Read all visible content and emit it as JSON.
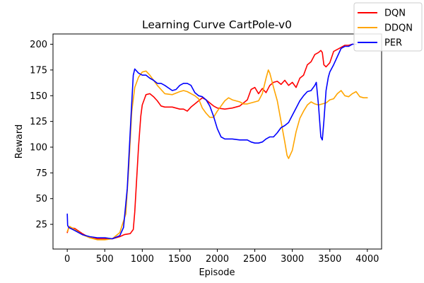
{
  "chart_data": {
    "type": "line",
    "title": "Learning Curve CartPole-v0",
    "xlabel": "Episode",
    "ylabel": "Reward",
    "xlim": [
      -190,
      4190
    ],
    "ylim": [
      1,
      210
    ],
    "xticks": [
      0,
      500,
      1000,
      1500,
      2000,
      2500,
      3000,
      3500,
      4000
    ],
    "yticks": [
      25,
      50,
      75,
      100,
      125,
      150,
      175,
      200
    ],
    "grid": false,
    "legend_position": "top-right",
    "series": [
      {
        "name": "DQN",
        "color": "#ff0000",
        "points": [
          [
            0,
            17
          ],
          [
            20,
            22
          ],
          [
            100,
            21
          ],
          [
            200,
            16
          ],
          [
            300,
            12
          ],
          [
            400,
            11
          ],
          [
            500,
            11
          ],
          [
            600,
            11
          ],
          [
            700,
            13
          ],
          [
            760,
            15
          ],
          [
            840,
            16
          ],
          [
            880,
            20
          ],
          [
            900,
            37
          ],
          [
            950,
            100
          ],
          [
            980,
            130
          ],
          [
            1000,
            141
          ],
          [
            1050,
            151
          ],
          [
            1100,
            152
          ],
          [
            1150,
            149
          ],
          [
            1200,
            145
          ],
          [
            1250,
            140
          ],
          [
            1300,
            139
          ],
          [
            1400,
            139
          ],
          [
            1500,
            137
          ],
          [
            1550,
            137
          ],
          [
            1600,
            135
          ],
          [
            1650,
            139
          ],
          [
            1700,
            142
          ],
          [
            1800,
            148
          ],
          [
            1850,
            146
          ],
          [
            1900,
            143
          ],
          [
            1950,
            140
          ],
          [
            2000,
            138
          ],
          [
            2100,
            137
          ],
          [
            2200,
            138
          ],
          [
            2300,
            140
          ],
          [
            2400,
            146
          ],
          [
            2450,
            156
          ],
          [
            2500,
            158
          ],
          [
            2550,
            152
          ],
          [
            2600,
            157
          ],
          [
            2650,
            153
          ],
          [
            2700,
            160
          ],
          [
            2750,
            163
          ],
          [
            2800,
            164
          ],
          [
            2850,
            161
          ],
          [
            2900,
            165
          ],
          [
            2950,
            160
          ],
          [
            3000,
            163
          ],
          [
            3050,
            158
          ],
          [
            3100,
            167
          ],
          [
            3150,
            170
          ],
          [
            3200,
            180
          ],
          [
            3250,
            183
          ],
          [
            3300,
            190
          ],
          [
            3350,
            192
          ],
          [
            3380,
            194
          ],
          [
            3400,
            192
          ],
          [
            3420,
            180
          ],
          [
            3450,
            178
          ],
          [
            3500,
            182
          ],
          [
            3550,
            193
          ],
          [
            3600,
            195
          ],
          [
            3650,
            197
          ],
          [
            3700,
            199
          ],
          [
            3750,
            199
          ],
          [
            3800,
            200
          ]
        ]
      },
      {
        "name": "DDQN",
        "color": "#ffa500",
        "points": [
          [
            0,
            18
          ],
          [
            30,
            23
          ],
          [
            100,
            20
          ],
          [
            200,
            15
          ],
          [
            300,
            12
          ],
          [
            400,
            10
          ],
          [
            500,
            10
          ],
          [
            600,
            11
          ],
          [
            700,
            17
          ],
          [
            780,
            35
          ],
          [
            820,
            80
          ],
          [
            860,
            135
          ],
          [
            900,
            158
          ],
          [
            950,
            168
          ],
          [
            1000,
            173
          ],
          [
            1050,
            174
          ],
          [
            1100,
            170
          ],
          [
            1150,
            165
          ],
          [
            1200,
            160
          ],
          [
            1300,
            152
          ],
          [
            1400,
            151
          ],
          [
            1500,
            154
          ],
          [
            1550,
            155
          ],
          [
            1600,
            154
          ],
          [
            1700,
            150
          ],
          [
            1750,
            147
          ],
          [
            1800,
            138
          ],
          [
            1850,
            133
          ],
          [
            1900,
            129
          ],
          [
            1950,
            129
          ],
          [
            2000,
            135
          ],
          [
            2050,
            140
          ],
          [
            2100,
            145
          ],
          [
            2150,
            148
          ],
          [
            2200,
            146
          ],
          [
            2300,
            144
          ],
          [
            2350,
            142
          ],
          [
            2400,
            142
          ],
          [
            2500,
            144
          ],
          [
            2550,
            145
          ],
          [
            2600,
            152
          ],
          [
            2650,
            167
          ],
          [
            2680,
            175
          ],
          [
            2700,
            172
          ],
          [
            2750,
            158
          ],
          [
            2800,
            145
          ],
          [
            2850,
            125
          ],
          [
            2900,
            105
          ],
          [
            2930,
            92
          ],
          [
            2950,
            89
          ],
          [
            3000,
            97
          ],
          [
            3050,
            115
          ],
          [
            3100,
            128
          ],
          [
            3150,
            135
          ],
          [
            3200,
            141
          ],
          [
            3250,
            144
          ],
          [
            3300,
            142
          ],
          [
            3350,
            141
          ],
          [
            3400,
            142
          ],
          [
            3450,
            143
          ],
          [
            3500,
            146
          ],
          [
            3550,
            147
          ],
          [
            3600,
            152
          ],
          [
            3650,
            155
          ],
          [
            3700,
            150
          ],
          [
            3750,
            149
          ],
          [
            3800,
            152
          ],
          [
            3850,
            154
          ],
          [
            3900,
            149
          ],
          [
            3950,
            148
          ],
          [
            4000,
            148
          ]
        ]
      },
      {
        "name": "PER",
        "color": "#0000ff",
        "points": [
          [
            0,
            35
          ],
          [
            5,
            24
          ],
          [
            20,
            22
          ],
          [
            100,
            19
          ],
          [
            200,
            15
          ],
          [
            300,
            13
          ],
          [
            400,
            12
          ],
          [
            500,
            12
          ],
          [
            600,
            11
          ],
          [
            700,
            14
          ],
          [
            750,
            22
          ],
          [
            800,
            60
          ],
          [
            850,
            130
          ],
          [
            880,
            170
          ],
          [
            900,
            176
          ],
          [
            950,
            172
          ],
          [
            1000,
            170
          ],
          [
            1050,
            170
          ],
          [
            1100,
            167
          ],
          [
            1150,
            165
          ],
          [
            1200,
            162
          ],
          [
            1250,
            162
          ],
          [
            1300,
            160
          ],
          [
            1400,
            155
          ],
          [
            1450,
            156
          ],
          [
            1500,
            160
          ],
          [
            1550,
            162
          ],
          [
            1600,
            162
          ],
          [
            1650,
            160
          ],
          [
            1700,
            153
          ],
          [
            1750,
            150
          ],
          [
            1800,
            149
          ],
          [
            1850,
            146
          ],
          [
            1900,
            140
          ],
          [
            1950,
            130
          ],
          [
            2000,
            118
          ],
          [
            2050,
            110
          ],
          [
            2100,
            108
          ],
          [
            2200,
            108
          ],
          [
            2300,
            107
          ],
          [
            2400,
            107
          ],
          [
            2450,
            105
          ],
          [
            2500,
            104
          ],
          [
            2550,
            104
          ],
          [
            2600,
            105
          ],
          [
            2650,
            108
          ],
          [
            2700,
            110
          ],
          [
            2750,
            110
          ],
          [
            2800,
            114
          ],
          [
            2850,
            119
          ],
          [
            2900,
            121
          ],
          [
            2950,
            124
          ],
          [
            3000,
            131
          ],
          [
            3050,
            138
          ],
          [
            3100,
            145
          ],
          [
            3150,
            150
          ],
          [
            3200,
            154
          ],
          [
            3250,
            155
          ],
          [
            3300,
            160
          ],
          [
            3320,
            163
          ],
          [
            3350,
            140
          ],
          [
            3380,
            110
          ],
          [
            3400,
            107
          ],
          [
            3420,
            125
          ],
          [
            3450,
            155
          ],
          [
            3480,
            168
          ],
          [
            3500,
            173
          ],
          [
            3550,
            180
          ],
          [
            3600,
            188
          ],
          [
            3650,
            196
          ],
          [
            3700,
            198
          ],
          [
            3750,
            198
          ],
          [
            3800,
            200
          ],
          [
            3850,
            200
          ]
        ]
      }
    ]
  }
}
